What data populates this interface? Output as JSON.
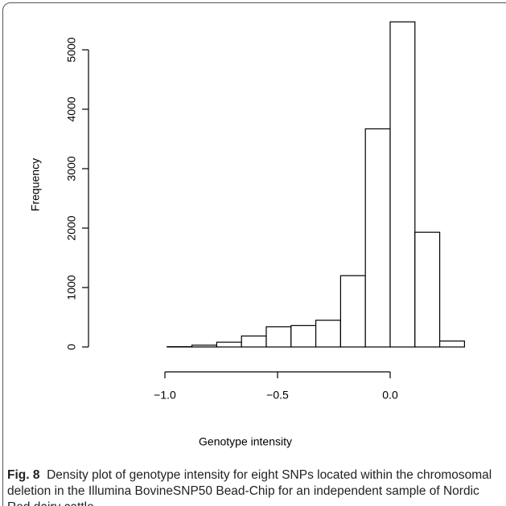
{
  "chart_data": {
    "type": "histogram",
    "xlabel": "Genotype intensity",
    "ylabel": "Frequency",
    "bins": [
      -1.21,
      -1.1,
      -0.99,
      -0.88,
      -0.77,
      -0.66,
      -0.55,
      -0.44,
      -0.33,
      -0.22,
      -0.11,
      0.0,
      0.11,
      0.22,
      0.33
    ],
    "values": [
      0,
      0,
      5,
      30,
      80,
      185,
      340,
      360,
      450,
      1200,
      3670,
      5470,
      1930,
      100
    ],
    "color": "#ffffff",
    "xlim": [
      -1.0,
      0.0
    ],
    "xticks": [
      {
        "value": -1.0,
        "label": "−1.0"
      },
      {
        "value": -0.5,
        "label": "−0.5"
      },
      {
        "value": 0.0,
        "label": "0.0"
      }
    ],
    "ylim": [
      0,
      5000
    ],
    "yticks": [
      0,
      1000,
      2000,
      3000,
      4000,
      5000
    ]
  },
  "caption": {
    "label": "Fig. 8",
    "text": "Density plot of genotype intensity for eight SNPs located within the chromosomal deletion in the Illumina BovineSNP50 Bead-Chip for an independent sample of Nordic Red dairy cattle"
  }
}
